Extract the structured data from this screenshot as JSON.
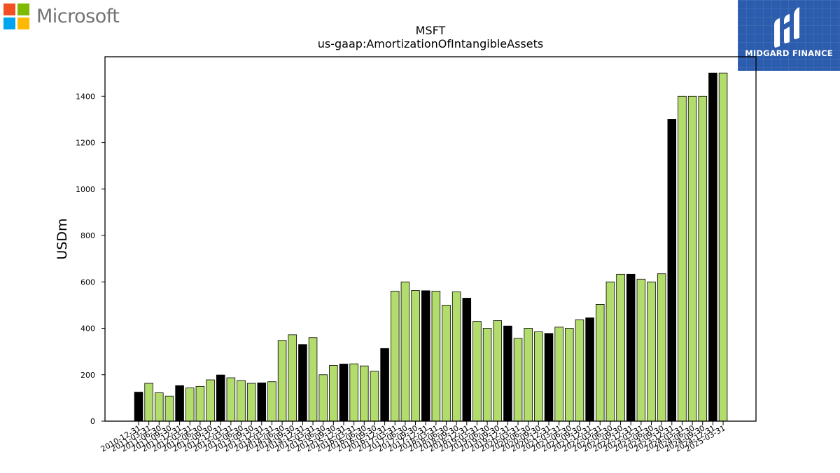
{
  "logo": {
    "wordmark": "Microsoft",
    "colors": [
      "#f25022",
      "#7fba00",
      "#00a4ef",
      "#ffb900"
    ],
    "icon": "microsoft-windows-logo-icon"
  },
  "brand": {
    "name": "MIDGARD FINANCE",
    "icon": "midgard-finance-logo-icon",
    "background": "#2b5cad"
  },
  "chart_data": {
    "type": "bar",
    "title": "MSFT",
    "subtitle": "us-gaap:AmortizationOfIntangibleAssets",
    "xlabel": "",
    "ylabel": "USDm",
    "ylim": [
      0,
      1570
    ],
    "yticks": [
      0,
      200,
      400,
      600,
      800,
      1000,
      1200,
      1400
    ],
    "grid": false,
    "colors": {
      "annual": "#000000",
      "quarterly": "#b2dc6c",
      "edge": "#000000"
    },
    "categories": [
      "2010-12-31",
      "2011-03-31",
      "2011-06-30",
      "2011-09-30",
      "2011-12-31",
      "2012-03-31",
      "2012-06-30",
      "2012-09-30",
      "2012-12-31",
      "2013-03-31",
      "2013-06-30",
      "2013-09-30",
      "2013-12-31",
      "2014-03-31",
      "2014-06-30",
      "2014-09-30",
      "2014-12-31",
      "2015-03-31",
      "2015-06-30",
      "2015-09-30",
      "2015-12-31",
      "2016-03-31",
      "2016-06-30",
      "2016-09-30",
      "2016-12-31",
      "2017-03-31",
      "2017-06-30",
      "2017-09-30",
      "2017-12-31",
      "2018-03-31",
      "2018-06-30",
      "2018-09-30",
      "2018-12-31",
      "2019-03-31",
      "2019-06-30",
      "2019-09-30",
      "2019-12-31",
      "2020-03-31",
      "2020-06-30",
      "2020-09-30",
      "2020-12-31",
      "2021-03-31",
      "2021-06-30",
      "2021-09-30",
      "2021-12-31",
      "2022-03-31",
      "2022-06-30",
      "2022-09-30",
      "2022-12-31",
      "2023-03-31",
      "2023-06-30",
      "2023-09-30",
      "2023-12-31",
      "2024-03-31",
      "2024-06-30",
      "2024-09-30",
      "2024-12-31",
      "2025-03-31"
    ],
    "values": [
      125,
      163,
      122,
      108,
      153,
      143,
      150,
      178,
      199,
      187,
      175,
      163,
      165,
      170,
      348,
      372,
      330,
      360,
      200,
      240,
      246,
      247,
      238,
      215,
      313,
      560,
      600,
      563,
      562,
      560,
      500,
      557,
      530,
      430,
      400,
      433,
      410,
      357,
      400,
      385,
      378,
      405,
      400,
      437,
      445,
      503,
      600,
      633,
      633,
      612,
      600,
      635,
      1300,
      1400,
      1400,
      1400,
      1500,
      1500
    ],
    "annual": [
      true,
      false,
      false,
      false,
      true,
      false,
      false,
      false,
      true,
      false,
      false,
      false,
      true,
      false,
      false,
      false,
      true,
      false,
      false,
      false,
      true,
      false,
      false,
      false,
      true,
      false,
      false,
      false,
      true,
      false,
      false,
      false,
      true,
      false,
      false,
      false,
      true,
      false,
      false,
      false,
      true,
      false,
      false,
      false,
      true,
      false,
      false,
      false,
      true,
      false,
      false,
      false,
      true,
      false,
      false,
      false,
      true,
      false
    ]
  }
}
